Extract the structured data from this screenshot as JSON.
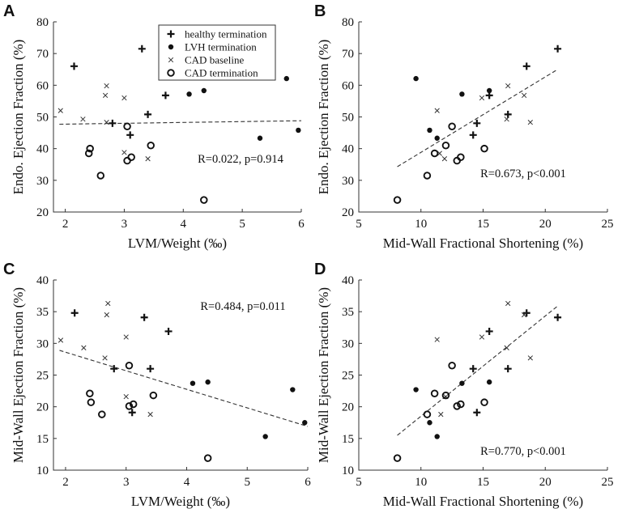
{
  "chart_data": [
    {
      "type": "scatter",
      "panel": "A",
      "xlabel": "LVM/Weight (‰)",
      "ylabel": "Endo. Ejection Fraction (%)",
      "xlim": [
        1.8,
        6
      ],
      "ylim": [
        20,
        80
      ],
      "xticks": [
        2,
        3,
        4,
        5,
        6
      ],
      "yticks": [
        20,
        30,
        40,
        50,
        60,
        70,
        80
      ],
      "annotation": "R=0.022, p=0.914",
      "fit": {
        "x1": 1.9,
        "y1": 47.7,
        "x2": 6.0,
        "y2": 48.8
      },
      "legend": [
        "healthy termination",
        "LVH termination",
        "CAD baseline",
        "CAD termination"
      ],
      "series": [
        {
          "name": "healthy termination",
          "marker": "plus",
          "points": [
            [
              2.15,
              66
            ],
            [
              3.3,
              71.5
            ],
            [
              2.8,
              48
            ],
            [
              3.4,
              50.8
            ],
            [
              3.1,
              44.3
            ],
            [
              3.7,
              56.8
            ]
          ]
        },
        {
          "name": "LVH termination",
          "marker": "dot",
          "points": [
            [
              4.1,
              57.2
            ],
            [
              4.35,
              58.3
            ],
            [
              5.3,
              43.3
            ],
            [
              5.75,
              62.1
            ],
            [
              5.95,
              45.8
            ]
          ]
        },
        {
          "name": "CAD baseline",
          "marker": "x",
          "points": [
            [
              1.92,
              52
            ],
            [
              2.3,
              49.3
            ],
            [
              2.7,
              59.8
            ],
            [
              2.68,
              56.8
            ],
            [
              2.7,
              48.3
            ],
            [
              3.0,
              56
            ],
            [
              3.0,
              38.8
            ],
            [
              3.4,
              36.8
            ]
          ]
        },
        {
          "name": "CAD termination",
          "marker": "circle",
          "points": [
            [
              2.4,
              38.5
            ],
            [
              2.42,
              40
            ],
            [
              2.6,
              31.5
            ],
            [
              3.05,
              47
            ],
            [
              3.05,
              36.2
            ],
            [
              3.12,
              37.3
            ],
            [
              3.45,
              41
            ],
            [
              4.35,
              23.8
            ]
          ]
        }
      ]
    },
    {
      "type": "scatter",
      "panel": "B",
      "xlabel": "Mid-Wall Fractional Shortening (%)",
      "ylabel": "Endo. Ejection Fraction (%)",
      "xlim": [
        5,
        25
      ],
      "ylim": [
        20,
        80
      ],
      "xticks": [
        5,
        10,
        15,
        20,
        25
      ],
      "yticks": [
        20,
        30,
        40,
        50,
        60,
        70,
        80
      ],
      "annotation": "R=0.673, p<0.001",
      "fit": {
        "x1": 8.1,
        "y1": 34.3,
        "x2": 21.0,
        "y2": 65.0
      },
      "series": [
        {
          "name": "healthy termination",
          "marker": "plus",
          "points": [
            [
              21.0,
              71.5
            ],
            [
              18.5,
              66
            ],
            [
              15.5,
              56.8
            ],
            [
              17.0,
              50.8
            ],
            [
              14.5,
              48
            ],
            [
              14.2,
              44.3
            ]
          ]
        },
        {
          "name": "LVH termination",
          "marker": "dot",
          "points": [
            [
              9.6,
              62.1
            ],
            [
              13.3,
              57.2
            ],
            [
              15.5,
              58.3
            ],
            [
              10.7,
              45.8
            ],
            [
              11.3,
              43.3
            ]
          ]
        },
        {
          "name": "CAD baseline",
          "marker": "x",
          "points": [
            [
              11.3,
              52
            ],
            [
              11.5,
              38.5
            ],
            [
              11.9,
              36.8
            ],
            [
              14.9,
              56
            ],
            [
              17.0,
              59.8
            ],
            [
              18.3,
              56.8
            ],
            [
              16.9,
              49.3
            ],
            [
              18.8,
              48.3
            ]
          ]
        },
        {
          "name": "CAD termination",
          "marker": "circle",
          "points": [
            [
              8.1,
              23.8
            ],
            [
              10.5,
              31.5
            ],
            [
              11.1,
              38.5
            ],
            [
              12.0,
              41
            ],
            [
              12.5,
              47
            ],
            [
              12.9,
              36.2
            ],
            [
              13.2,
              37.3
            ],
            [
              15.1,
              40
            ]
          ]
        }
      ]
    },
    {
      "type": "scatter",
      "panel": "C",
      "xlabel": "LVM/Weight (‰)",
      "ylabel": "Mid-Wall Ejection Fraction (%)",
      "xlim": [
        1.8,
        6
      ],
      "ylim": [
        10,
        40
      ],
      "xticks": [
        2,
        3,
        4,
        5,
        6
      ],
      "yticks": [
        10,
        15,
        20,
        25,
        30,
        35,
        40
      ],
      "annotation": "R=0.484, p=0.011",
      "fit": {
        "x1": 1.9,
        "y1": 28.9,
        "x2": 6.0,
        "y2": 16.9
      },
      "series": [
        {
          "name": "healthy termination",
          "marker": "plus",
          "points": [
            [
              2.15,
              34.8
            ],
            [
              3.3,
              34.1
            ],
            [
              3.7,
              31.9
            ],
            [
              2.8,
              26
            ],
            [
              3.4,
              26
            ],
            [
              3.1,
              19.1
            ]
          ]
        },
        {
          "name": "LVH termination",
          "marker": "dot",
          "points": [
            [
              4.1,
              23.7
            ],
            [
              4.35,
              23.9
            ],
            [
              5.3,
              15.3
            ],
            [
              5.75,
              22.7
            ],
            [
              5.95,
              17.5
            ]
          ]
        },
        {
          "name": "CAD baseline",
          "marker": "x",
          "points": [
            [
              1.92,
              30.5
            ],
            [
              2.3,
              29.3
            ],
            [
              2.7,
              36.3
            ],
            [
              2.68,
              34.5
            ],
            [
              2.65,
              27.7
            ],
            [
              3.0,
              31
            ],
            [
              3.0,
              21.6
            ],
            [
              3.4,
              18.8
            ]
          ]
        },
        {
          "name": "CAD termination",
          "marker": "circle",
          "points": [
            [
              2.4,
              22.1
            ],
            [
              2.42,
              20.7
            ],
            [
              2.6,
              18.8
            ],
            [
              3.05,
              26.5
            ],
            [
              3.05,
              20.1
            ],
            [
              3.12,
              20.4
            ],
            [
              3.45,
              21.8
            ],
            [
              4.35,
              11.9
            ]
          ]
        }
      ]
    },
    {
      "type": "scatter",
      "panel": "D",
      "xlabel": "Mid-Wall Fractional Shortening (%)",
      "ylabel": "Mid-Wall Ejection Fraction (%)",
      "xlim": [
        5,
        25
      ],
      "ylim": [
        10,
        40
      ],
      "xticks": [
        5,
        10,
        15,
        20,
        25
      ],
      "yticks": [
        10,
        15,
        20,
        25,
        30,
        35,
        40
      ],
      "annotation": "R=0.770, p<0.001",
      "fit": {
        "x1": 8.1,
        "y1": 15.5,
        "x2": 21.0,
        "y2": 35.9
      },
      "series": [
        {
          "name": "healthy termination",
          "marker": "plus",
          "points": [
            [
              21.0,
              34.1
            ],
            [
              18.5,
              34.8
            ],
            [
              15.5,
              31.9
            ],
            [
              17.0,
              26
            ],
            [
              14.2,
              26
            ],
            [
              14.5,
              19.1
            ]
          ]
        },
        {
          "name": "LVH termination",
          "marker": "dot",
          "points": [
            [
              9.6,
              22.7
            ],
            [
              10.7,
              17.5
            ],
            [
              11.3,
              15.3
            ],
            [
              13.3,
              23.7
            ],
            [
              15.5,
              23.9
            ]
          ]
        },
        {
          "name": "CAD baseline",
          "marker": "x",
          "points": [
            [
              11.3,
              30.6
            ],
            [
              11.6,
              18.8
            ],
            [
              14.9,
              31
            ],
            [
              17.0,
              36.3
            ],
            [
              18.3,
              34.5
            ],
            [
              18.8,
              27.7
            ],
            [
              16.9,
              29.3
            ],
            [
              12.0,
              21.6
            ]
          ]
        },
        {
          "name": "CAD termination",
          "marker": "circle",
          "points": [
            [
              8.1,
              11.9
            ],
            [
              10.5,
              18.8
            ],
            [
              11.1,
              22.1
            ],
            [
              12.0,
              21.8
            ],
            [
              12.5,
              26.5
            ],
            [
              12.9,
              20.1
            ],
            [
              13.2,
              20.4
            ],
            [
              15.1,
              20.7
            ]
          ]
        }
      ]
    }
  ]
}
